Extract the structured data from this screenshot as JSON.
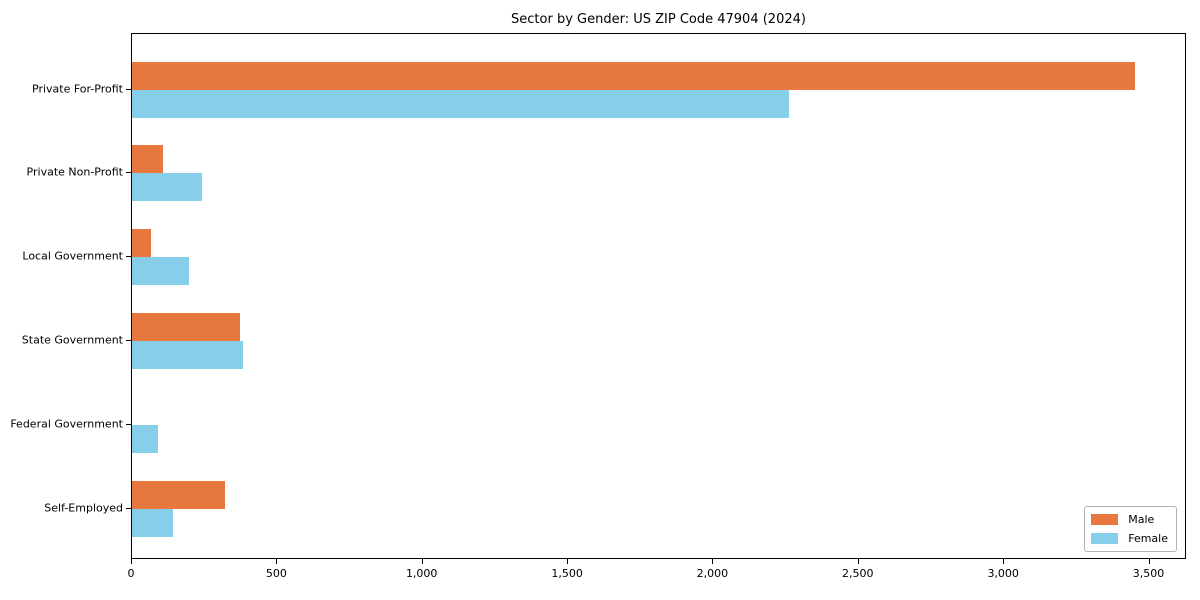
{
  "title": "Sector by Gender: US ZIP Code 47904 (2024)",
  "colors": {
    "male": "#e8793e",
    "female": "#87ceeb",
    "spine": "#000000",
    "background": "#ffffff",
    "legend_border": "#b3b3b3"
  },
  "legend": {
    "position": "lower right",
    "items": [
      {
        "label": "Male",
        "color": "#e8793e"
      },
      {
        "label": "Female",
        "color": "#87ceeb"
      }
    ]
  },
  "chart_data": {
    "type": "bar",
    "orientation": "horizontal",
    "title": "Sector by Gender: US ZIP Code 47904 (2024)",
    "xlabel": "",
    "ylabel": "",
    "categories": [
      "Private For-Profit",
      "Private Non-Profit",
      "Local Government",
      "State Government",
      "Federal Government",
      "Self-Employed"
    ],
    "series": [
      {
        "name": "Male",
        "color": "#e8793e",
        "values": [
          3450,
          105,
          65,
          370,
          0,
          320
        ]
      },
      {
        "name": "Female",
        "color": "#87ceeb",
        "values": [
          2260,
          240,
          195,
          380,
          90,
          140
        ]
      }
    ],
    "xlim": [
      0,
      3622
    ],
    "xticks": [
      0,
      500,
      1000,
      1500,
      2000,
      2500,
      3000,
      3500
    ],
    "xtick_labels": [
      "0",
      "500",
      "1,000",
      "1,500",
      "2,000",
      "2,500",
      "3,000",
      "3,500"
    ],
    "grid": false,
    "legend_position": "lower right"
  }
}
